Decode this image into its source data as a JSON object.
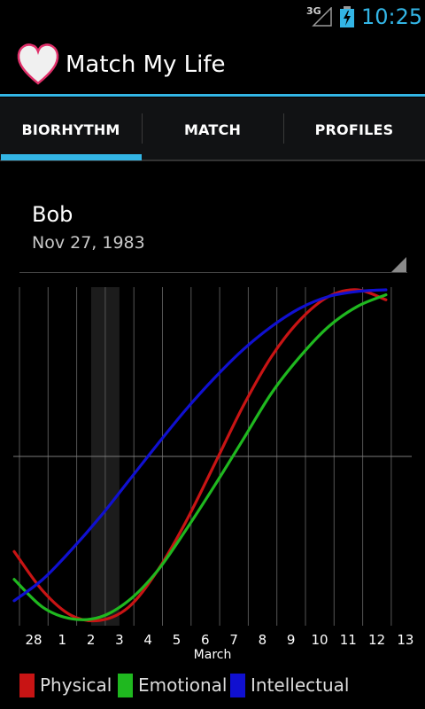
{
  "status_bar": {
    "network": "3G",
    "time": "10:25",
    "battery_icon": "battery-charging-icon",
    "signal_icon": "signal-icon"
  },
  "action_bar": {
    "title": "Match My Life",
    "icon": "heart-icon"
  },
  "tabs": [
    {
      "label": "BIORHYTHM",
      "selected": true
    },
    {
      "label": "MATCH",
      "selected": false
    },
    {
      "label": "PROFILES",
      "selected": false
    }
  ],
  "profile": {
    "name": "Bob",
    "birthdate": "Nov 27, 1983"
  },
  "colors": {
    "accent": "#33b5e5",
    "physical": "#c81414",
    "emotional": "#1fb81f",
    "intellectual": "#1010d0"
  },
  "chart_data": {
    "type": "line",
    "x_tick_labels": [
      "28",
      "1",
      "2",
      "3",
      "4",
      "5",
      "6",
      "7",
      "8",
      "9",
      "10",
      "11",
      "12",
      "13"
    ],
    "x_month_label": "March",
    "highlighted_day": "3",
    "ylim": [
      -1,
      1
    ],
    "x_start_day": 28,
    "days_visible": 14,
    "series": [
      {
        "name": "Physical",
        "color": "#c81414",
        "period": 23,
        "points": [
          [
            0,
            -0.58
          ],
          [
            1,
            -0.82
          ],
          [
            2,
            -0.97
          ],
          [
            3,
            -1.0
          ],
          [
            4,
            -0.92
          ],
          [
            5,
            -0.7
          ],
          [
            6,
            -0.4
          ],
          [
            7,
            -0.05
          ],
          [
            8,
            0.3
          ],
          [
            9,
            0.6
          ],
          [
            10,
            0.82
          ],
          [
            11,
            0.96
          ],
          [
            12,
            1.0
          ],
          [
            13,
            0.94
          ]
        ]
      },
      {
        "name": "Emotional",
        "color": "#1fb81f",
        "period": 28,
        "points": [
          [
            0,
            -0.75
          ],
          [
            1,
            -0.92
          ],
          [
            2,
            -0.99
          ],
          [
            3,
            -0.98
          ],
          [
            4,
            -0.88
          ],
          [
            5,
            -0.7
          ],
          [
            6,
            -0.45
          ],
          [
            7,
            -0.18
          ],
          [
            8,
            0.1
          ],
          [
            9,
            0.38
          ],
          [
            10,
            0.6
          ],
          [
            11,
            0.78
          ],
          [
            12,
            0.9
          ],
          [
            13,
            0.97
          ]
        ]
      },
      {
        "name": "Intellectual",
        "color": "#1010d0",
        "period": 33,
        "points": [
          [
            0,
            -0.88
          ],
          [
            1,
            -0.75
          ],
          [
            2,
            -0.57
          ],
          [
            3,
            -0.37
          ],
          [
            4,
            -0.15
          ],
          [
            5,
            0.07
          ],
          [
            6,
            0.28
          ],
          [
            7,
            0.47
          ],
          [
            8,
            0.64
          ],
          [
            9,
            0.78
          ],
          [
            10,
            0.89
          ],
          [
            11,
            0.96
          ],
          [
            12,
            0.99
          ],
          [
            13,
            1.0
          ]
        ]
      }
    ]
  },
  "legend": [
    {
      "label": "Physical",
      "color": "#c81414"
    },
    {
      "label": "Emotional",
      "color": "#1fb81f"
    },
    {
      "label": "Intellectual",
      "color": "#1010d0"
    }
  ]
}
